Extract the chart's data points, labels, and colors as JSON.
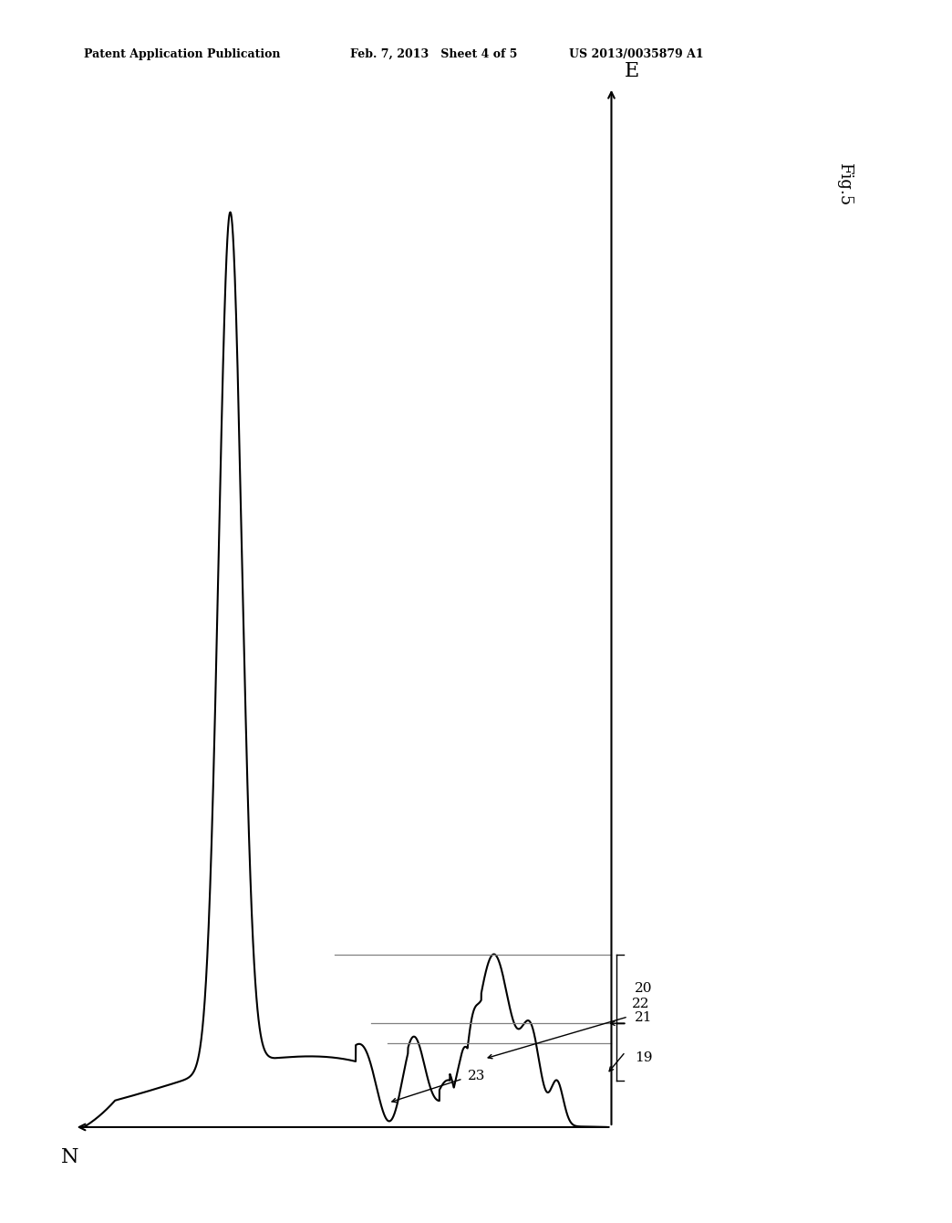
{
  "fig_label": "Fig.5",
  "header_left": "Patent Application Publication",
  "header_mid": "Feb. 7, 2013   Sheet 4 of 5",
  "header_right": "US 2013/0035879 A1",
  "axis_label_x": "N",
  "axis_label_y": "E",
  "label_20": "20",
  "label_21": "21",
  "label_19": "19",
  "label_22": "22",
  "label_23": "23",
  "bg_color": "#ffffff",
  "line_color": "#000000",
  "note": "Spectrum plot: E (vertical axis, right side), N (horizontal axis, arrow points left). Main large peak extends far left. Near vertical axis: peaks 20 (tallest), 21 (medium, leftward offset), 19 (small, lower). Oscillatory region 23 in middle. Noisy region 22 near bottom."
}
